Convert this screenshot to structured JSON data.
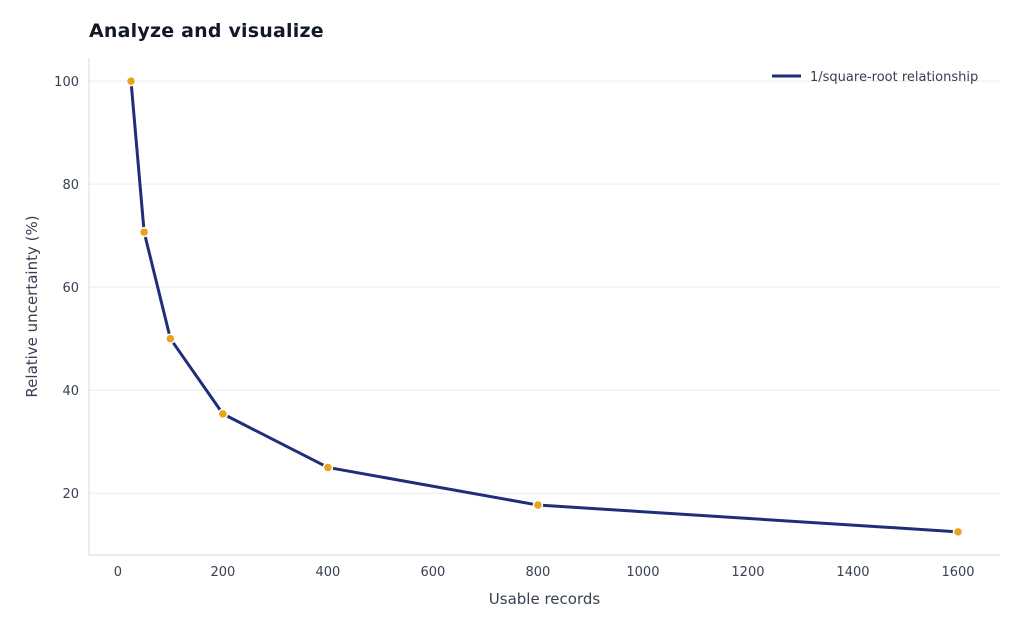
{
  "chart_data": {
    "type": "line",
    "title": "Analyze and visualize",
    "xlabel": "Usable records",
    "ylabel": "Relative uncertainty (%)",
    "xlim": [
      -55,
      1680
    ],
    "ylim": [
      8,
      104.5
    ],
    "xticks": [
      0,
      200,
      400,
      600,
      800,
      1000,
      1200,
      1400,
      1600
    ],
    "yticks": [
      20,
      40,
      60,
      80,
      100
    ],
    "grid": "horizontal",
    "legend": "top-right",
    "series": [
      {
        "name": "1/square-root relationship",
        "color": "#1f2d7a",
        "marker_color": "#e8a21c",
        "x": [
          25,
          50,
          100,
          200,
          400,
          800,
          1600
        ],
        "y": [
          100,
          70.7,
          50,
          35.4,
          25,
          17.7,
          12.5
        ]
      }
    ]
  }
}
